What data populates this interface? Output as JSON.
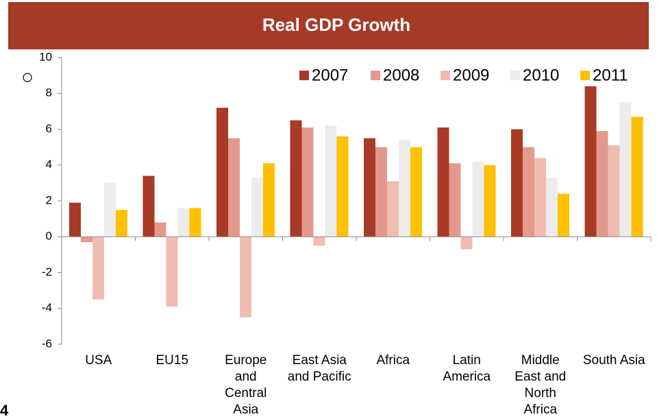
{
  "chart_data": {
    "type": "bar",
    "title": "Real GDP Growth",
    "categories": [
      "USA",
      "EU15",
      "Europe and Central Asia",
      "East Asia and Pacific",
      "Africa",
      "Latin America",
      "Middle East and North Africa",
      "South Asia"
    ],
    "series": [
      {
        "name": "2007",
        "color": "#a83a26",
        "values": [
          1.9,
          3.4,
          7.2,
          6.5,
          5.5,
          6.1,
          6.0,
          8.4
        ]
      },
      {
        "name": "2008",
        "color": "#e39a8c",
        "values": [
          -0.3,
          0.8,
          5.5,
          6.1,
          5.0,
          4.1,
          5.0,
          5.9
        ]
      },
      {
        "name": "2009",
        "color": "#f0bcb2",
        "values": [
          -3.5,
          -3.9,
          -4.5,
          -0.5,
          3.1,
          -0.7,
          4.4,
          5.1
        ]
      },
      {
        "name": "2010",
        "color": "#ececec",
        "values": [
          3.0,
          1.6,
          3.3,
          6.2,
          5.4,
          4.2,
          3.3,
          7.5
        ]
      },
      {
        "name": "2011",
        "color": "#ffc000",
        "values": [
          1.5,
          1.6,
          4.1,
          5.6,
          5.0,
          4.0,
          2.4,
          6.7
        ]
      }
    ],
    "ylim": [
      -6,
      10
    ],
    "yticks": [
      -6,
      -4,
      -2,
      0,
      2,
      4,
      6,
      8,
      10
    ],
    "grid": false,
    "legend": "top-right"
  },
  "page_number": "4"
}
